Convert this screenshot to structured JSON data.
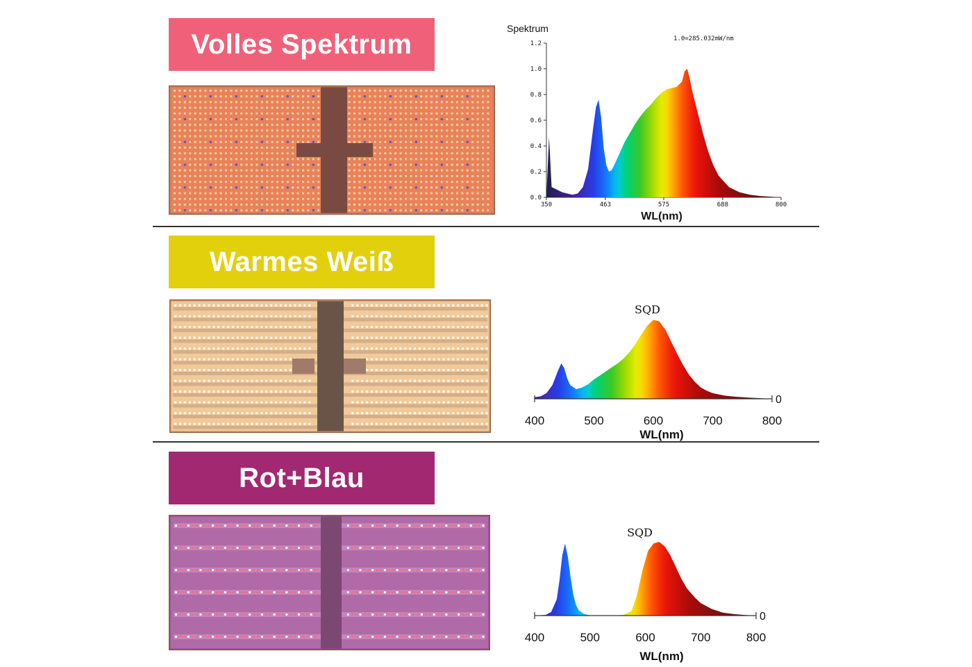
{
  "sections": [
    {
      "id": "full",
      "banner": {
        "label": "Volles Spektrum",
        "color": "#f06179"
      },
      "panel": {
        "bg": "#e8825a",
        "led": "#ffd8b0",
        "blue_led": "#4b57e0",
        "frame": "#b8775a",
        "center": "#7a4a42"
      }
    },
    {
      "id": "warm",
      "banner": {
        "label": "Warmes Weiß",
        "color": "#e2d00d"
      },
      "panel": {
        "bg": "#f1c99a",
        "led": "#fff6e2",
        "frame": "#c08a5a",
        "center": "#6a5448"
      }
    },
    {
      "id": "rb",
      "banner": {
        "label": "Rot+Blau",
        "color": "#a22872"
      },
      "panel": {
        "bg": "#b06aa8",
        "led_red": "#ff6a7a",
        "led_white": "#f4f0ff",
        "frame": "#8e4c8a",
        "center": "#7b4872"
      }
    }
  ],
  "chart_data": [
    {
      "type": "area",
      "title": "Spektrum",
      "annotation": "1.0=285.032mW/nm",
      "xlabel": "WL(nm)",
      "ylabel": "",
      "xlim": [
        350,
        800
      ],
      "ylim": [
        0,
        1.2
      ],
      "xticks": [
        "350",
        "463",
        "575",
        "688",
        "800"
      ],
      "yticks": [
        "0.0",
        "0.2",
        "0.4",
        "0.6",
        "0.8",
        "1.0",
        "1.2"
      ],
      "x": [
        350,
        355,
        360,
        370,
        380,
        390,
        400,
        410,
        420,
        430,
        440,
        445,
        450,
        455,
        460,
        465,
        470,
        475,
        480,
        490,
        500,
        510,
        520,
        530,
        540,
        550,
        560,
        570,
        580,
        590,
        600,
        610,
        615,
        620,
        625,
        630,
        640,
        650,
        660,
        670,
        680,
        700,
        720,
        740,
        760,
        780,
        800
      ],
      "y": [
        0.0,
        0.47,
        0.08,
        0.06,
        0.04,
        0.03,
        0.02,
        0.03,
        0.08,
        0.22,
        0.55,
        0.7,
        0.76,
        0.62,
        0.38,
        0.25,
        0.2,
        0.21,
        0.25,
        0.34,
        0.43,
        0.5,
        0.57,
        0.63,
        0.68,
        0.72,
        0.77,
        0.81,
        0.84,
        0.85,
        0.86,
        0.9,
        0.98,
        1.0,
        0.92,
        0.82,
        0.66,
        0.5,
        0.36,
        0.25,
        0.17,
        0.08,
        0.04,
        0.02,
        0.01,
        0.005,
        0.0
      ]
    },
    {
      "type": "area",
      "title": "SQD",
      "xlabel": "WL(nm)",
      "ylabel": "",
      "xlim": [
        400,
        800
      ],
      "ylim": [
        0,
        1
      ],
      "xticks": [
        "400",
        "500",
        "600",
        "700",
        "800"
      ],
      "zero_label": "0",
      "x": [
        400,
        410,
        420,
        430,
        440,
        445,
        450,
        455,
        460,
        470,
        480,
        490,
        500,
        510,
        520,
        530,
        540,
        550,
        560,
        570,
        580,
        590,
        600,
        610,
        620,
        630,
        640,
        650,
        660,
        670,
        680,
        690,
        700,
        720,
        740,
        760,
        780,
        800
      ],
      "y": [
        0.02,
        0.03,
        0.07,
        0.17,
        0.36,
        0.44,
        0.38,
        0.25,
        0.17,
        0.12,
        0.14,
        0.18,
        0.24,
        0.29,
        0.34,
        0.39,
        0.44,
        0.5,
        0.58,
        0.68,
        0.8,
        0.91,
        0.98,
        0.96,
        0.86,
        0.71,
        0.56,
        0.42,
        0.3,
        0.21,
        0.14,
        0.1,
        0.07,
        0.04,
        0.025,
        0.015,
        0.008,
        0.0
      ]
    },
    {
      "type": "area",
      "title": "SQD",
      "xlabel": "WL(nm)",
      "ylabel": "",
      "xlim": [
        400,
        800
      ],
      "ylim": [
        0,
        1
      ],
      "xticks": [
        "400",
        "500",
        "600",
        "700",
        "800"
      ],
      "zero_label": "0",
      "x": [
        400,
        420,
        430,
        440,
        445,
        450,
        455,
        460,
        465,
        470,
        475,
        480,
        490,
        500,
        520,
        540,
        560,
        575,
        585,
        595,
        605,
        615,
        625,
        635,
        645,
        655,
        665,
        675,
        690,
        700,
        720,
        740,
        760,
        780,
        800
      ],
      "y": [
        0.0,
        0.01,
        0.05,
        0.22,
        0.48,
        0.82,
        0.98,
        0.8,
        0.52,
        0.28,
        0.14,
        0.07,
        0.02,
        0.005,
        0.0,
        0.0,
        0.01,
        0.06,
        0.28,
        0.62,
        0.88,
        0.98,
        1.0,
        0.94,
        0.82,
        0.66,
        0.5,
        0.37,
        0.24,
        0.17,
        0.09,
        0.04,
        0.02,
        0.008,
        0.0
      ]
    }
  ]
}
